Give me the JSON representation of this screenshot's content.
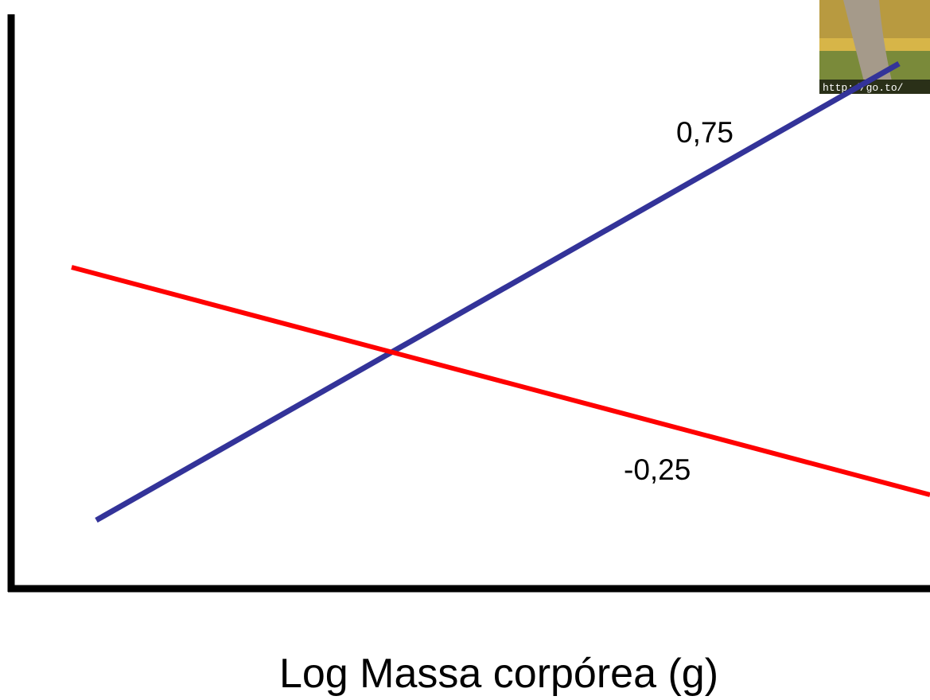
{
  "lines": [
    {
      "label": "0,75"
    },
    {
      "label": "-0,25"
    }
  ],
  "x_axis_label": "Log Massa corpórea (g)",
  "image_caption": "http://go.to/"
}
